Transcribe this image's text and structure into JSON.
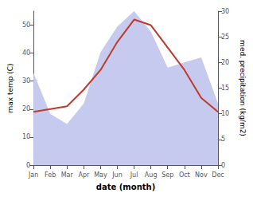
{
  "chart_data": {
    "type": "line",
    "xlabel": "date (month)",
    "ylabel": "max temp (C)",
    "y2label": "med. precipitation (kg/m2)",
    "categories": [
      "Jan",
      "Feb",
      "Mar",
      "Apr",
      "May",
      "Jun",
      "Jul",
      "Aug",
      "Sep",
      "Oct",
      "Nov",
      "Dec"
    ],
    "series": [
      {
        "type": "area",
        "color": "#c5caee",
        "axis": "y2",
        "values": [
          18,
          10,
          8,
          12,
          22,
          27,
          30,
          26,
          19,
          20,
          21,
          12
        ]
      },
      {
        "type": "line",
        "color": "#c0392b",
        "values": [
          19,
          20,
          21,
          27,
          34,
          44,
          52,
          50,
          42,
          34,
          24,
          19
        ]
      }
    ],
    "ylim": [
      0,
      55
    ],
    "yticks": [
      0,
      10,
      20,
      30,
      40,
      50
    ],
    "y2lim": [
      0,
      30
    ],
    "y2ticks": [
      0,
      5,
      10,
      15,
      20,
      25,
      30
    ],
    "grid": false
  }
}
